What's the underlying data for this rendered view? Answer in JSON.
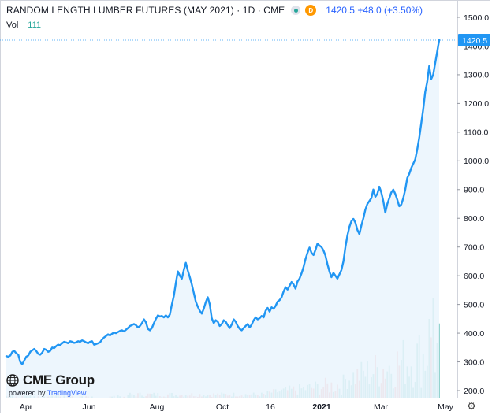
{
  "header": {
    "title": "RANDOM LENGTH LUMBER FUTURES (MAY 2021) · 1D · CME",
    "badge": "D",
    "price_text": "1420.5 +48.0 (+3.50%)"
  },
  "volume_row": {
    "label": "Vol",
    "value": "111"
  },
  "logo": {
    "name": "CME Group",
    "powered_prefix": "powered by",
    "powered_brand": "TradingView"
  },
  "colors": {
    "line": "#2196f3",
    "fill": "#eaf4fd",
    "vol_up": "#26a69a",
    "vol_down": "#ef5350",
    "badge": "#ff9800",
    "price_text": "#2962ff"
  },
  "icons": {
    "settings": "gear-icon",
    "visibility": "eye-icon",
    "logo": "globe-icon"
  },
  "chart_data": {
    "type": "line",
    "title": "RANDOM LENGTH LUMBER FUTURES (MAY 2021)",
    "ylim": [
      180,
      1530
    ],
    "y_ticks": [
      "200.0",
      "300.0",
      "400.0",
      "500.0",
      "600.0",
      "700.0",
      "800.0",
      "900.0",
      "1000.0",
      "1100.0",
      "1200.0",
      "1300.0",
      "1400.0",
      "1500.0"
    ],
    "x_ticks": [
      "Apr",
      "Jun",
      "Aug",
      "Oct",
      "16",
      "2021",
      "Mar",
      "May"
    ],
    "last_value_label": "1420.5",
    "grid": false,
    "volume": {
      "peak_marker": 111,
      "scale_max": 110
    },
    "series": [
      {
        "values": [
          320,
          318,
          322,
          335,
          338,
          330,
          325,
          300,
          292,
          305,
          318,
          322,
          335,
          340,
          345,
          338,
          328,
          325,
          332,
          345,
          342,
          335,
          338,
          350,
          348,
          355,
          360,
          358,
          365,
          370,
          368,
          365,
          372,
          370,
          366,
          368,
          372,
          370,
          375,
          372,
          368,
          365,
          370,
          372,
          360,
          362,
          365,
          368,
          378,
          385,
          390,
          396,
          392,
          398,
          402,
          400,
          404,
          408,
          410,
          406,
          412,
          418,
          425,
          428,
          432,
          428,
          420,
          425,
          435,
          448,
          438,
          415,
          410,
          418,
          435,
          450,
          462,
          458,
          460,
          455,
          462,
          455,
          465,
          500,
          530,
          575,
          615,
          600,
          590,
          620,
          645,
          618,
          595,
          570,
          540,
          510,
          492,
          478,
          468,
          485,
          508,
          525,
          500,
          452,
          435,
          445,
          440,
          425,
          432,
          445,
          440,
          428,
          418,
          430,
          448,
          440,
          425,
          415,
          410,
          418,
          425,
          432,
          420,
          430,
          445,
          455,
          448,
          452,
          460,
          455,
          478,
          488,
          475,
          490,
          485,
          495,
          510,
          515,
          525,
          545,
          560,
          552,
          565,
          578,
          570,
          555,
          580,
          590,
          608,
          630,
          658,
          680,
          698,
          680,
          672,
          690,
          712,
          705,
          700,
          688,
          670,
          640,
          615,
          595,
          610,
          600,
          590,
          605,
          620,
          650,
          700,
          740,
          770,
          790,
          798,
          785,
          760,
          745,
          775,
          800,
          830,
          850,
          860,
          870,
          900,
          875,
          885,
          910,
          890,
          860,
          820,
          850,
          870,
          890,
          900,
          885,
          865,
          842,
          848,
          870,
          900,
          940,
          955,
          975,
          990,
          1005,
          1040,
          1080,
          1130,
          1180,
          1240,
          1275,
          1330,
          1285,
          1300,
          1340,
          1380,
          1420.5
        ]
      }
    ]
  }
}
